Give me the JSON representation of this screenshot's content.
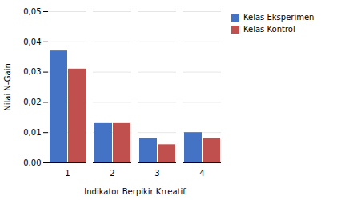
{
  "chart_data": {
    "type": "bar",
    "categories": [
      "1",
      "2",
      "3",
      "4"
    ],
    "series": [
      {
        "name": "Kelas Eksperimen",
        "color": "#4472C4",
        "values": [
          0.037,
          0.013,
          0.008,
          0.01
        ]
      },
      {
        "name": "Kelas Kontrol",
        "color": "#C0504D",
        "values": [
          0.031,
          0.013,
          0.006,
          0.008
        ]
      }
    ],
    "xlabel": "Indikator Berpikir Krreatif",
    "ylabel": "Nilai N-Gain",
    "ylim": [
      0.0,
      0.05
    ],
    "yticks": [
      {
        "value": 0.0,
        "label": "0,00"
      },
      {
        "value": 0.01,
        "label": "0,01"
      },
      {
        "value": 0.02,
        "label": "0,02"
      },
      {
        "value": 0.03,
        "label": "0,03"
      },
      {
        "value": 0.04,
        "label": "0,04"
      },
      {
        "value": 0.05,
        "label": "0,05"
      }
    ],
    "grid": true,
    "legend": "right"
  }
}
